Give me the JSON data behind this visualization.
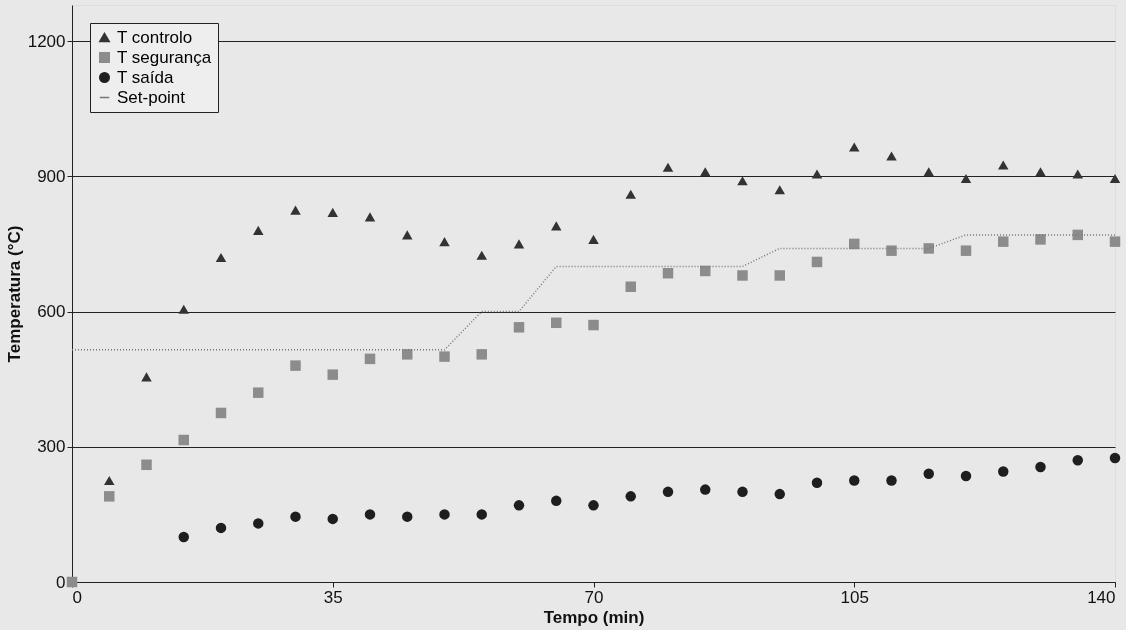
{
  "chart_data": {
    "type": "scatter",
    "xlabel": "Tempo (min)",
    "ylabel": "Temperatura (°C)",
    "xlim": [
      0,
      140
    ],
    "xticks": [
      0,
      35,
      70,
      105,
      140
    ],
    "ylim": [
      0,
      1280
    ],
    "yticks": [
      0,
      300,
      600,
      900,
      1200
    ],
    "grid": "y",
    "legend": "top left",
    "series": [
      {
        "name": "T controlo",
        "marker": "triangle",
        "color": "#333333",
        "x": [
          5,
          10,
          15,
          20,
          25,
          30,
          35,
          40,
          45,
          50,
          55,
          60,
          65,
          70,
          75,
          80,
          85,
          90,
          95,
          100,
          105,
          110,
          115,
          120,
          125,
          130,
          135,
          140
        ],
        "values": [
          225,
          455,
          605,
          720,
          780,
          825,
          820,
          810,
          770,
          755,
          725,
          750,
          790,
          760,
          860,
          920,
          910,
          890,
          870,
          905,
          965,
          945,
          910,
          895,
          925,
          910,
          905,
          895
        ]
      },
      {
        "name": "T segurança",
        "marker": "square",
        "color": "#8c8c8c",
        "x": [
          0,
          5,
          10,
          15,
          20,
          25,
          30,
          35,
          40,
          45,
          50,
          55,
          60,
          65,
          70,
          75,
          80,
          85,
          90,
          95,
          100,
          105,
          110,
          115,
          120,
          125,
          130,
          135,
          140
        ],
        "values": [
          0,
          190,
          260,
          315,
          375,
          420,
          480,
          460,
          495,
          505,
          500,
          505,
          565,
          575,
          570,
          655,
          685,
          690,
          680,
          680,
          710,
          750,
          735,
          740,
          735,
          755,
          760,
          770,
          755
        ]
      },
      {
        "name": "T saída",
        "marker": "circle",
        "color": "#1e1e1e",
        "x": [
          15,
          20,
          25,
          30,
          35,
          40,
          45,
          50,
          55,
          60,
          65,
          70,
          75,
          80,
          85,
          90,
          95,
          100,
          105,
          110,
          115,
          120,
          125,
          130,
          135,
          140
        ],
        "values": [
          100,
          120,
          130,
          145,
          140,
          150,
          145,
          150,
          150,
          170,
          180,
          170,
          190,
          200,
          205,
          200,
          195,
          220,
          225,
          225,
          240,
          235,
          245,
          255,
          270,
          275
        ]
      },
      {
        "name": "Set-point",
        "type": "line",
        "marker": "none",
        "line_style": "dotted",
        "color": "#777777",
        "x": [
          0,
          50,
          55,
          60,
          65,
          90,
          95,
          115,
          120,
          140
        ],
        "values": [
          515,
          515,
          600,
          600,
          700,
          700,
          740,
          740,
          770,
          770
        ]
      }
    ]
  }
}
